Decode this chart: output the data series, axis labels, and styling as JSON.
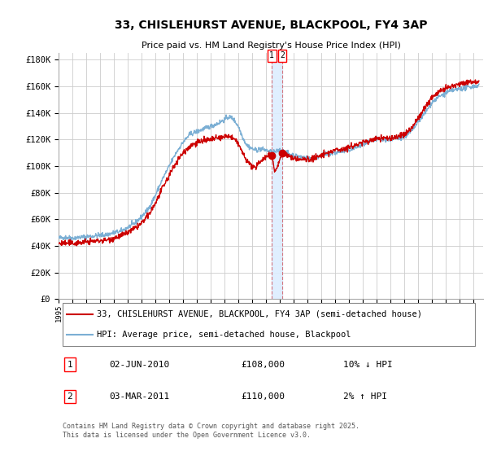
{
  "title": "33, CHISLEHURST AVENUE, BLACKPOOL, FY4 3AP",
  "subtitle": "Price paid vs. HM Land Registry's House Price Index (HPI)",
  "ylabel_ticks": [
    "£0",
    "£20K",
    "£40K",
    "£60K",
    "£80K",
    "£100K",
    "£120K",
    "£140K",
    "£160K",
    "£180K"
  ],
  "ylim": [
    0,
    185000
  ],
  "xlim_start": 1995.0,
  "xlim_end": 2025.7,
  "red_line_label": "33, CHISLEHURST AVENUE, BLACKPOOL, FY4 3AP (semi-detached house)",
  "blue_line_label": "HPI: Average price, semi-detached house, Blackpool",
  "annotation1_date": "02-JUN-2010",
  "annotation1_price": "£108,000",
  "annotation1_hpi": "10% ↓ HPI",
  "annotation2_date": "03-MAR-2011",
  "annotation2_price": "£110,000",
  "annotation2_hpi": "2% ↑ HPI",
  "vline1_x": 2010.42,
  "vline2_x": 2011.17,
  "point1_x": 2010.42,
  "point1_y": 108000,
  "point2_x": 2011.17,
  "point2_y": 110000,
  "bg_color": "#ffffff",
  "plot_bg_color": "#ffffff",
  "grid_color": "#cccccc",
  "red_color": "#cc0000",
  "blue_color": "#7bafd4",
  "vspan_color": "#ddeeff",
  "copyright_text": "Contains HM Land Registry data © Crown copyright and database right 2025.\nThis data is licensed under the Open Government Licence v3.0.",
  "x_ticks": [
    1995,
    1996,
    1997,
    1998,
    1999,
    2000,
    2001,
    2002,
    2003,
    2004,
    2005,
    2006,
    2007,
    2008,
    2009,
    2010,
    2011,
    2012,
    2013,
    2014,
    2015,
    2016,
    2017,
    2018,
    2019,
    2020,
    2021,
    2022,
    2023,
    2024,
    2025
  ],
  "ytick_vals": [
    0,
    20000,
    40000,
    60000,
    80000,
    100000,
    120000,
    140000,
    160000,
    180000
  ]
}
